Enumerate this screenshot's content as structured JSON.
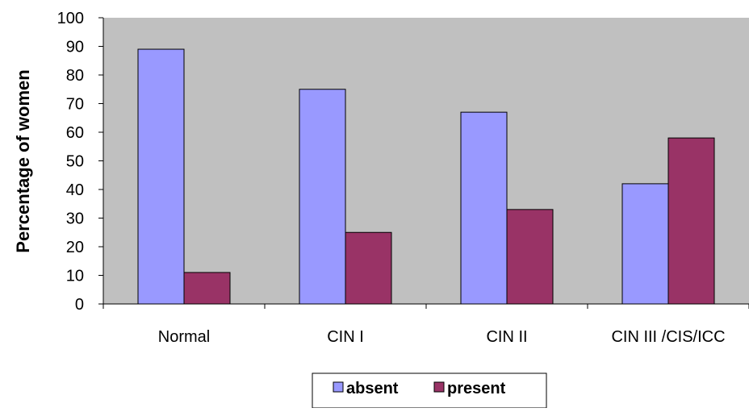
{
  "chart_data": {
    "type": "bar",
    "title": "",
    "xlabel": "",
    "ylabel": "Percentage  of women",
    "categories": [
      "Normal",
      "CIN I",
      "CIN II",
      "CIN III /CIS/ICC"
    ],
    "series": [
      {
        "name": "absent",
        "values": [
          89,
          75,
          67,
          42
        ],
        "color": "#9999ff"
      },
      {
        "name": "present",
        "values": [
          11,
          25,
          33,
          58
        ],
        "color": "#993366"
      }
    ],
    "ylim": [
      0,
      100
    ],
    "yticks": [
      0,
      10,
      20,
      30,
      40,
      50,
      60,
      70,
      80,
      90,
      100
    ],
    "grid": false,
    "plot_background": "#c0c0c0",
    "legend_position": "bottom"
  }
}
